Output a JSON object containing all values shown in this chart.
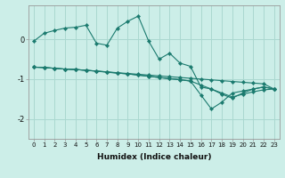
{
  "xlabel": "Humidex (Indice chaleur)",
  "background_color": "#cceee8",
  "grid_color": "#aad8d0",
  "line_color": "#1a7a6e",
  "x_data": [
    0,
    1,
    2,
    3,
    4,
    5,
    6,
    7,
    8,
    9,
    10,
    11,
    12,
    13,
    14,
    15,
    16,
    17,
    18,
    19,
    20,
    21,
    22,
    23
  ],
  "series1": [
    -0.05,
    0.15,
    0.22,
    0.28,
    0.3,
    0.35,
    -0.1,
    -0.15,
    0.28,
    0.45,
    0.58,
    -0.05,
    -0.5,
    -0.35,
    -0.6,
    -0.68,
    -1.2,
    -1.25,
    -1.38,
    -1.48,
    -1.35,
    -1.25,
    -1.2,
    -1.25
  ],
  "series2": [
    -0.7,
    -0.71,
    -0.73,
    -0.75,
    -0.76,
    -0.78,
    -0.8,
    -0.82,
    -0.84,
    -0.86,
    -0.88,
    -0.9,
    -0.92,
    -0.94,
    -0.96,
    -0.98,
    -1.0,
    -1.02,
    -1.04,
    -1.06,
    -1.08,
    -1.1,
    -1.12,
    -1.25
  ],
  "series3": [
    -0.7,
    -0.71,
    -0.73,
    -0.75,
    -0.76,
    -0.78,
    -0.8,
    -0.83,
    -0.85,
    -0.87,
    -0.9,
    -0.93,
    -0.96,
    -0.99,
    -1.02,
    -1.05,
    -1.4,
    -1.75,
    -1.58,
    -1.35,
    -1.3,
    -1.25,
    -1.2,
    -1.25
  ],
  "series4": [
    -0.7,
    -0.71,
    -0.73,
    -0.75,
    -0.76,
    -0.78,
    -0.8,
    -0.82,
    -0.85,
    -0.87,
    -0.9,
    -0.93,
    -0.96,
    -0.99,
    -1.01,
    -1.05,
    -1.15,
    -1.25,
    -1.35,
    -1.45,
    -1.38,
    -1.32,
    -1.27,
    -1.25
  ],
  "yticks": [
    -2,
    -1,
    0
  ],
  "ylim": [
    -2.5,
    0.85
  ],
  "xlim": [
    -0.5,
    23.5
  ],
  "xtick_fontsize": 5,
  "ytick_fontsize": 6,
  "xlabel_fontsize": 6.5
}
